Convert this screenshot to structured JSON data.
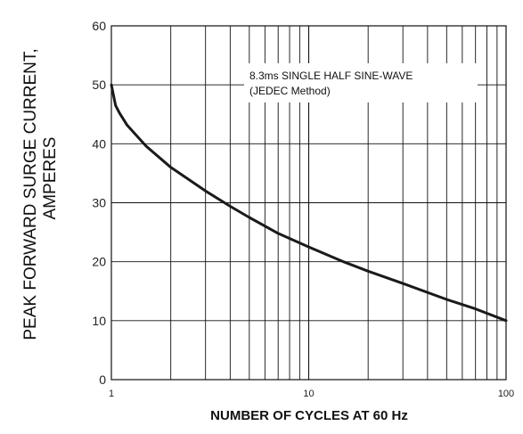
{
  "chart_data": {
    "type": "line",
    "xscale": "log",
    "xlim": [
      1,
      100
    ],
    "ylim": [
      0,
      60
    ],
    "xticks": [
      "1",
      "10",
      "100"
    ],
    "yticks": [
      "0",
      "10",
      "20",
      "30",
      "40",
      "50",
      "60"
    ],
    "grid": true,
    "xlabel": "NUMBER OF CYCLES AT 60 Hz",
    "ylabel_line1": "PEAK  FORWARD SURGE CURRENT,",
    "ylabel_line2": "AMPERES",
    "annotation_line1": "8.3ms SINGLE HALF SINE-WAVE",
    "annotation_line2": "(JEDEC Method)",
    "series": [
      {
        "x": [
          1,
          1.05,
          1.1,
          1.2,
          1.5,
          2,
          3,
          4,
          5,
          7,
          10,
          15,
          20,
          30,
          50,
          70,
          100
        ],
        "y": [
          50,
          46.5,
          45.2,
          43.2,
          39.6,
          36.0,
          32.0,
          29.4,
          27.5,
          24.8,
          22.5,
          20.0,
          18.4,
          16.3,
          13.6,
          12.0,
          10.0
        ]
      }
    ],
    "line_color": "#1a1a1a"
  }
}
